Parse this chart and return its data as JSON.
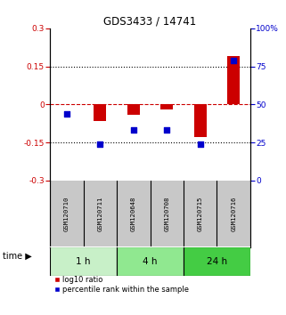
{
  "title": "GDS3433 / 14741",
  "samples": [
    "GSM120710",
    "GSM120711",
    "GSM120648",
    "GSM120708",
    "GSM120715",
    "GSM120716"
  ],
  "groups": [
    {
      "label": "1 h",
      "indices": [
        0,
        1
      ],
      "color": "#c8f0c8"
    },
    {
      "label": "4 h",
      "indices": [
        2,
        3
      ],
      "color": "#90e890"
    },
    {
      "label": "24 h",
      "indices": [
        4,
        5
      ],
      "color": "#44cc44"
    }
  ],
  "log10_ratio": [
    0.0,
    -0.065,
    -0.04,
    -0.02,
    -0.13,
    0.19
  ],
  "percentile_rank": [
    44,
    24,
    33,
    33,
    24,
    79
  ],
  "ylim_left": [
    -0.3,
    0.3
  ],
  "ylim_right": [
    0,
    100
  ],
  "yticks_left": [
    -0.3,
    -0.15,
    0,
    0.15,
    0.3
  ],
  "yticks_right": [
    0,
    25,
    50,
    75,
    100
  ],
  "ytick_labels_left": [
    "-0.3",
    "-0.15",
    "0",
    "0.15",
    "0.3"
  ],
  "ytick_labels_right": [
    "0",
    "25",
    "50",
    "75",
    "100%"
  ],
  "bar_color_red": "#cc0000",
  "bar_color_blue": "#0000cc",
  "zero_line_color": "#cc0000",
  "dotted_line_color": "#000000",
  "background_color": "#ffffff",
  "plot_bg_color": "#ffffff",
  "sample_box_color": "#c8c8c8",
  "time_label": "time",
  "legend_red": "log10 ratio",
  "legend_blue": "percentile rank within the sample"
}
